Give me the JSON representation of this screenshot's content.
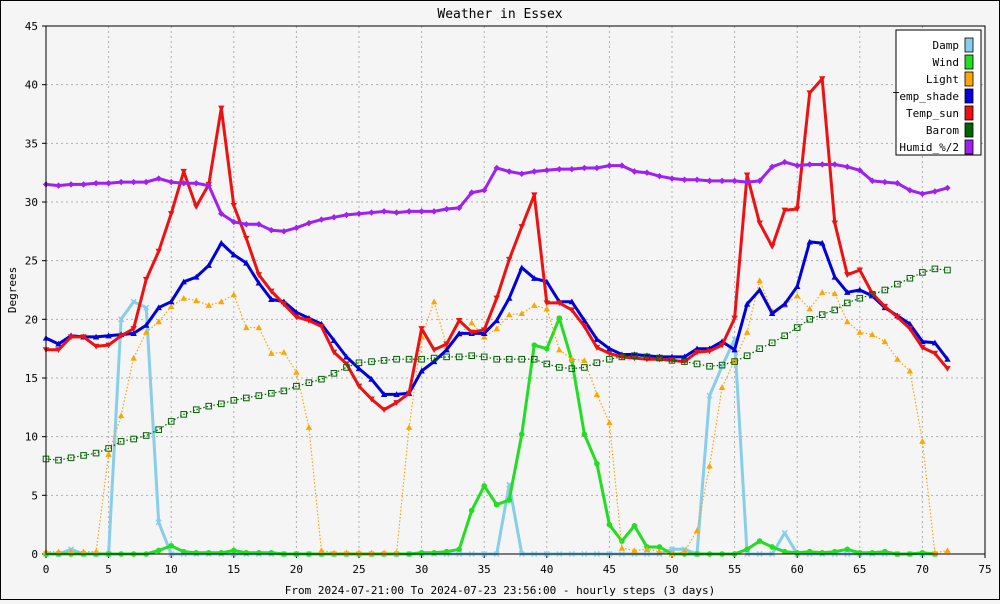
{
  "chart_data": {
    "type": "line",
    "title": "Weather in Essex",
    "xlabel": "From 2024-07-21:00 To 2024-07-23 23:56:00 - hourly steps (3 days)",
    "ylabel": "Degrees",
    "xlim": [
      0,
      75
    ],
    "ylim": [
      0,
      45
    ],
    "x_ticks": [
      0,
      5,
      10,
      15,
      20,
      25,
      30,
      35,
      40,
      45,
      50,
      55,
      60,
      65,
      70,
      75
    ],
    "y_ticks": [
      0,
      5,
      10,
      15,
      20,
      25,
      30,
      35,
      40,
      45
    ],
    "grid": true,
    "legend_position": "top-right",
    "series": [
      {
        "name": "Damp",
        "color": "#87ceeb",
        "marker": "x",
        "values": [
          0,
          0,
          0.4,
          0,
          0,
          0,
          20,
          21.5,
          21,
          2.7,
          0,
          0,
          0,
          0,
          0,
          0,
          0,
          0,
          0,
          0,
          0,
          0,
          0,
          0,
          0,
          0,
          0,
          0,
          0,
          0,
          0,
          0,
          0,
          0,
          0,
          0,
          0,
          5.9,
          0,
          0,
          0,
          0,
          0,
          0,
          0,
          0,
          0,
          0,
          0,
          0,
          0.4,
          0.4,
          0,
          13.5,
          16,
          18.3,
          0,
          0,
          0,
          1.8,
          0,
          0,
          0,
          0,
          0,
          0,
          0,
          0,
          0,
          0,
          0,
          0
        ]
      },
      {
        "name": "Wind",
        "color": "#22dd22",
        "marker": "circle",
        "values": [
          0,
          0,
          0,
          0,
          0,
          0,
          0,
          0,
          0,
          0.3,
          0.7,
          0.2,
          0.1,
          0.1,
          0.1,
          0.3,
          0.1,
          0.1,
          0.1,
          0,
          0,
          0,
          0,
          0,
          0,
          0,
          0,
          0,
          0,
          0,
          0.1,
          0.1,
          0.2,
          0.4,
          3.7,
          5.8,
          4.2,
          4.6,
          10.2,
          17.8,
          17.5,
          20.1,
          16.5,
          10.2,
          7.7,
          2.5,
          1.1,
          2.4,
          0.6,
          0.6,
          0,
          0,
          0,
          0,
          0,
          0,
          0.4,
          1.1,
          0.6,
          0.2,
          0.1,
          0.2,
          0.1,
          0.2,
          0.4,
          0.1,
          0.1,
          0.2,
          0,
          0,
          0.1,
          0
        ]
      },
      {
        "name": "Light",
        "color": "#ffa500",
        "marker": "triangle",
        "values": [
          0.2,
          0.2,
          0.2,
          0.2,
          0.2,
          8.5,
          11.8,
          16.7,
          18.9,
          19.8,
          21.1,
          21.8,
          21.6,
          21.2,
          21.5,
          22.1,
          19.3,
          19.3,
          17.1,
          17.2,
          15.5,
          10.8,
          0.3,
          0.1,
          0.1,
          0.1,
          0.1,
          0.1,
          0.1,
          10.8,
          18.5,
          21.5,
          17.7,
          18.7,
          19.7,
          18.5,
          19.2,
          20.4,
          20.5,
          21.2,
          20.9,
          17.4,
          16.6,
          16.5,
          13.6,
          11.2,
          0.5,
          0.3,
          0.4,
          0.2,
          0,
          0.2,
          2,
          7.5,
          14.2,
          16.5,
          18.9,
          23.3,
          20.7,
          21.2,
          22,
          20.9,
          22.3,
          22.2,
          19.8,
          18.9,
          18.7,
          18.1,
          16.6,
          15.6,
          9.6,
          0.1,
          0.3
        ]
      },
      {
        "name": "Temp_shade",
        "color": "#0000dd",
        "marker": "triangle",
        "values": [
          18.4,
          17.9,
          18.6,
          18.5,
          18.5,
          18.6,
          18.7,
          18.8,
          19.5,
          21,
          21.5,
          23.2,
          23.6,
          24.6,
          26.5,
          25.5,
          24.8,
          23.1,
          21.7,
          21.5,
          20.6,
          20.1,
          19.6,
          18.2,
          16.8,
          15.8,
          14.9,
          13.6,
          13.6,
          13.7,
          15.6,
          16.4,
          17.4,
          18.8,
          18.8,
          18.8,
          19.9,
          21.8,
          24.4,
          23.5,
          23.2,
          21.5,
          21.5,
          19.9,
          18.3,
          17.5,
          17,
          17,
          16.9,
          16.8,
          16.8,
          16.8,
          17.5,
          17.5,
          18.1,
          17.4,
          21.3,
          22.5,
          20.5,
          21.3,
          22.8,
          26.6,
          26.5,
          23.6,
          22.3,
          22.5,
          22,
          21,
          20.3,
          19.6,
          18.1,
          18,
          16.6
        ]
      },
      {
        "name": "Temp_sun",
        "color": "#ee1111",
        "marker": "triangle-down",
        "values": [
          17.4,
          17.4,
          18.5,
          18.5,
          17.7,
          17.8,
          18.6,
          19.2,
          23.4,
          25.8,
          29,
          32.6,
          29.6,
          31.5,
          38,
          29.7,
          26.9,
          23.8,
          22.4,
          21.3,
          20.2,
          19.9,
          19.4,
          17.2,
          16.2,
          14.3,
          13.2,
          12.3,
          12.9,
          13.7,
          19.2,
          17.4,
          17.9,
          19.9,
          18.9,
          19.1,
          21.8,
          25.1,
          27.9,
          30.6,
          21.4,
          21.4,
          20.8,
          19.4,
          17.6,
          17.1,
          16.8,
          16.7,
          16.6,
          16.6,
          16.5,
          16.4,
          17.2,
          17.3,
          17.8,
          20.1,
          32.3,
          28.2,
          26.2,
          29.3,
          29.4,
          39.3,
          40.5,
          28.2,
          23.8,
          24.2,
          22.2,
          21.1,
          20.2,
          19.2,
          17.6,
          17.1,
          15.8
        ]
      },
      {
        "name": "Barom",
        "color": "#006400",
        "marker": "square",
        "values": [
          8.1,
          8,
          8.2,
          8.4,
          8.6,
          9,
          9.6,
          9.8,
          10.1,
          10.6,
          11.3,
          11.9,
          12.3,
          12.6,
          12.8,
          13.1,
          13.3,
          13.5,
          13.7,
          13.9,
          14.3,
          14.6,
          14.9,
          15.4,
          15.9,
          16.3,
          16.4,
          16.5,
          16.6,
          16.6,
          16.6,
          16.7,
          16.8,
          16.8,
          16.9,
          16.8,
          16.6,
          16.6,
          16.6,
          16.6,
          16.2,
          15.9,
          15.8,
          15.9,
          16.3,
          16.6,
          16.8,
          16.9,
          16.8,
          16.7,
          16.5,
          16.4,
          16.2,
          16,
          16.1,
          16.4,
          16.9,
          17.5,
          18,
          18.6,
          19.3,
          20,
          20.4,
          20.8,
          21.4,
          21.8,
          22.1,
          22.5,
          23,
          23.5,
          24,
          24.3,
          24.2
        ]
      },
      {
        "name": "Humid_%/2",
        "color": "#a020f0",
        "marker": "diamond",
        "values": [
          31.5,
          31.4,
          31.5,
          31.5,
          31.6,
          31.6,
          31.7,
          31.7,
          31.7,
          32,
          31.7,
          31.6,
          31.6,
          31.4,
          29,
          28.3,
          28.1,
          28.1,
          27.6,
          27.5,
          27.8,
          28.2,
          28.5,
          28.7,
          28.9,
          29,
          29.1,
          29.2,
          29.1,
          29.2,
          29.2,
          29.2,
          29.4,
          29.5,
          30.8,
          31,
          32.9,
          32.6,
          32.4,
          32.6,
          32.7,
          32.8,
          32.8,
          32.9,
          32.9,
          33.1,
          33.1,
          32.6,
          32.5,
          32.2,
          32,
          31.9,
          31.9,
          31.8,
          31.8,
          31.8,
          31.7,
          31.8,
          33,
          33.4,
          33.1,
          33.2,
          33.2,
          33.2,
          33,
          32.7,
          31.8,
          31.7,
          31.6,
          31,
          30.7,
          30.9,
          31.2
        ]
      }
    ]
  }
}
